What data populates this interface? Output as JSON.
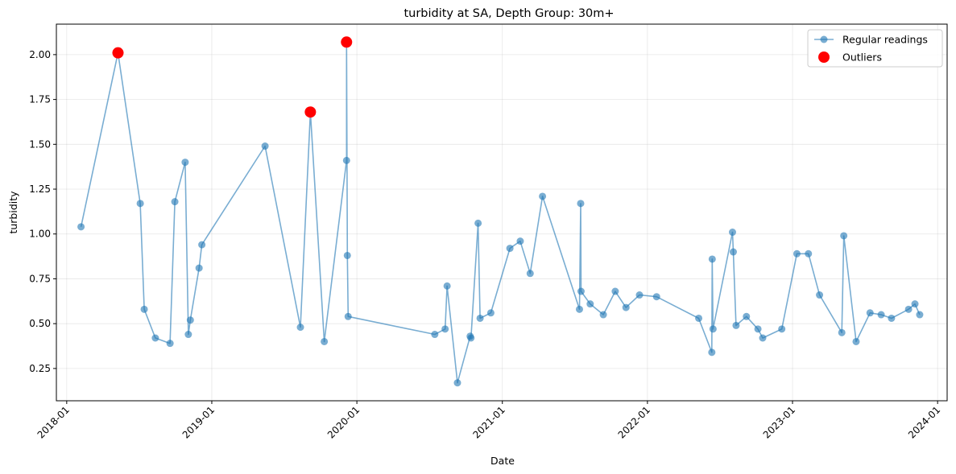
{
  "chart_data": {
    "type": "line",
    "title": "turbidity at SA, Depth Group: 30m+",
    "xlabel": "Date",
    "ylabel": "turbidity",
    "x_ticks": [
      "2018-01",
      "2019-01",
      "2020-01",
      "2021-01",
      "2022-01",
      "2023-01",
      "2024-01"
    ],
    "y_ticks": [
      "0.25",
      "0.50",
      "0.75",
      "1.00",
      "1.25",
      "1.50",
      "1.75",
      "2.00"
    ],
    "xlim": [
      "2017-12-06",
      "2024-01-25"
    ],
    "ylim": [
      0.07,
      2.17
    ],
    "grid": true,
    "legend_position": "top-right",
    "series": [
      {
        "name": "Regular readings",
        "color": "#1f77b4",
        "style": "line-with-circle-markers",
        "points": [
          [
            "2018-02-06",
            1.04
          ],
          [
            "2018-05-10",
            2.01
          ],
          [
            "2018-07-05",
            1.17
          ],
          [
            "2018-07-15",
            0.58
          ],
          [
            "2018-08-12",
            0.42
          ],
          [
            "2018-09-18",
            0.39
          ],
          [
            "2018-09-30",
            1.18
          ],
          [
            "2018-10-26",
            1.4
          ],
          [
            "2018-11-03",
            0.44
          ],
          [
            "2018-11-08",
            0.52
          ],
          [
            "2018-11-30",
            0.81
          ],
          [
            "2018-12-07",
            0.94
          ],
          [
            "2019-05-15",
            1.49
          ],
          [
            "2019-08-12",
            0.48
          ],
          [
            "2019-09-06",
            1.68
          ],
          [
            "2019-10-11",
            0.4
          ],
          [
            "2019-12-06",
            1.41
          ],
          [
            "2019-12-06",
            2.07
          ],
          [
            "2019-12-08",
            0.88
          ],
          [
            "2019-12-10",
            0.54
          ],
          [
            "2020-07-15",
            0.44
          ],
          [
            "2020-08-10",
            0.47
          ],
          [
            "2020-08-15",
            0.71
          ],
          [
            "2020-09-10",
            0.17
          ],
          [
            "2020-10-12",
            0.43
          ],
          [
            "2020-10-14",
            0.42
          ],
          [
            "2020-11-01",
            1.06
          ],
          [
            "2020-11-06",
            0.53
          ],
          [
            "2020-12-03",
            0.56
          ],
          [
            "2021-01-20",
            0.92
          ],
          [
            "2021-02-15",
            0.96
          ],
          [
            "2021-03-12",
            0.78
          ],
          [
            "2021-04-12",
            1.21
          ],
          [
            "2021-07-14",
            0.58
          ],
          [
            "2021-07-17",
            1.17
          ],
          [
            "2021-07-18",
            0.68
          ],
          [
            "2021-08-10",
            0.61
          ],
          [
            "2021-09-12",
            0.55
          ],
          [
            "2021-10-12",
            0.68
          ],
          [
            "2021-11-08",
            0.59
          ],
          [
            "2021-12-12",
            0.66
          ],
          [
            "2022-01-24",
            0.65
          ],
          [
            "2022-05-10",
            0.53
          ],
          [
            "2022-06-12",
            0.34
          ],
          [
            "2022-06-13",
            0.86
          ],
          [
            "2022-06-15",
            0.47
          ],
          [
            "2022-08-03",
            1.01
          ],
          [
            "2022-08-05",
            0.9
          ],
          [
            "2022-08-12",
            0.49
          ],
          [
            "2022-09-07",
            0.54
          ],
          [
            "2022-10-06",
            0.47
          ],
          [
            "2022-10-18",
            0.42
          ],
          [
            "2022-12-05",
            0.47
          ],
          [
            "2023-01-12",
            0.89
          ],
          [
            "2023-02-10",
            0.89
          ],
          [
            "2023-03-10",
            0.66
          ],
          [
            "2023-05-05",
            0.45
          ],
          [
            "2023-05-10",
            0.99
          ],
          [
            "2023-06-10",
            0.4
          ],
          [
            "2023-07-15",
            0.56
          ],
          [
            "2023-08-12",
            0.55
          ],
          [
            "2023-09-07",
            0.53
          ],
          [
            "2023-10-20",
            0.58
          ],
          [
            "2023-11-05",
            0.61
          ],
          [
            "2023-11-17",
            0.55
          ]
        ]
      },
      {
        "name": "Outliers",
        "color": "#ff0000",
        "style": "large-circle-markers",
        "points": [
          [
            "2018-05-10",
            2.01
          ],
          [
            "2019-09-06",
            1.68
          ],
          [
            "2019-12-06",
            2.07
          ]
        ]
      }
    ]
  }
}
